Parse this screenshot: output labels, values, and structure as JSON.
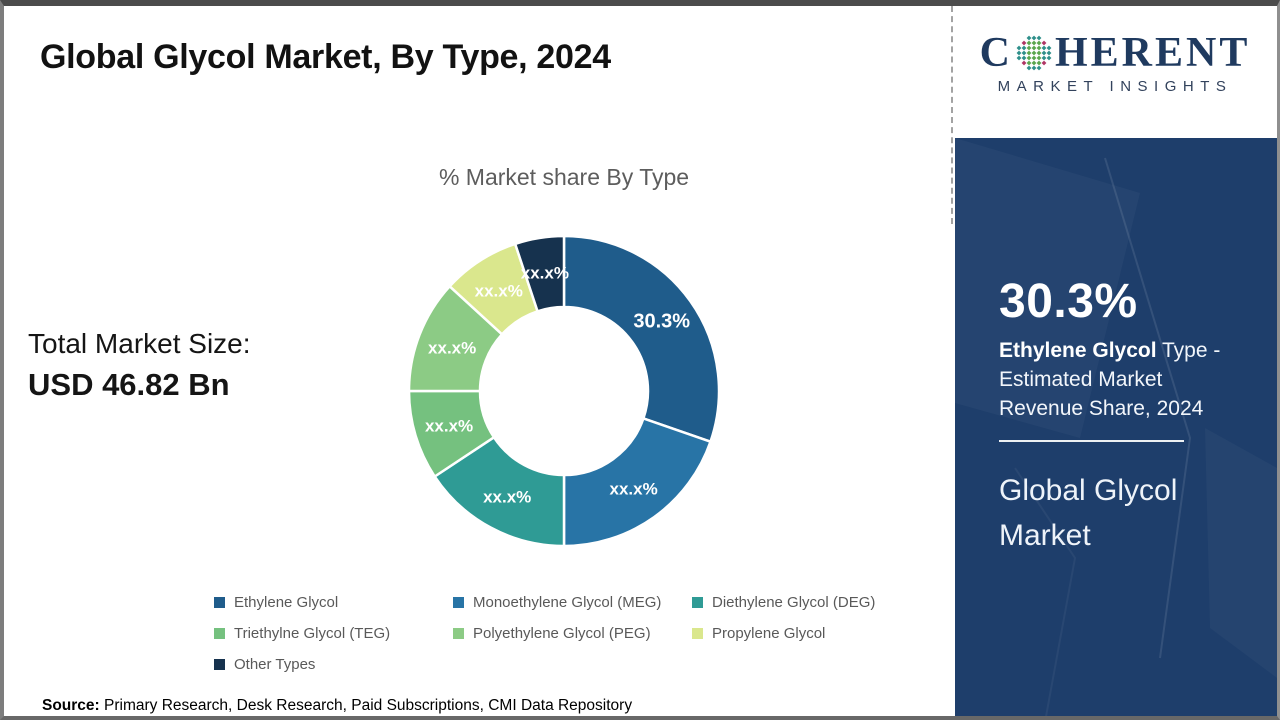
{
  "page": {
    "title": "Global Glycol Market, By Type, 2024"
  },
  "logo": {
    "word_start": "C",
    "word_end": "HERENT",
    "subtitle": "MARKET INSIGHTS"
  },
  "left_panel": {
    "total_label": "Total Market Size:",
    "total_value": "USD 46.82 Bn"
  },
  "chart_data": {
    "type": "pie",
    "style": "donut",
    "title": "% Market share By Type",
    "legend_position": "bottom",
    "start_angle_deg": 0,
    "direction": "clockwise",
    "segments": [
      {
        "label": "Ethylene Glycol",
        "value": 30.3,
        "display": "30.3%",
        "color": "#1F5C8B"
      },
      {
        "label": "Monoethylene Glycol (MEG)",
        "value": 19.7,
        "display": "xx.x%",
        "color": "#2874A6"
      },
      {
        "label": "Diethylene Glycol (DEG)",
        "value": 15.7,
        "display": "xx.x%",
        "color": "#2F9B95"
      },
      {
        "label": "Triethylne Glycol (TEG)",
        "value": 9.3,
        "display": "xx.x%",
        "color": "#75C17F"
      },
      {
        "label": "Polyethylene Glycol (PEG)",
        "value": 11.8,
        "display": "xx.x%",
        "color": "#8CCB85"
      },
      {
        "label": "Propylene Glycol",
        "value": 8.1,
        "display": "xx.x%",
        "color": "#DAE78D"
      },
      {
        "label": "Other Types",
        "value": 5.1,
        "display": "xx.x%",
        "color": "#16324E"
      }
    ]
  },
  "sidebar": {
    "stat_value": "30.3%",
    "stat_bold": "Ethylene Glycol",
    "stat_rest": " Type - Estimated Market Revenue Share, 2024",
    "market_name": "Global Glycol Market"
  },
  "footer": {
    "source_label": "Source:",
    "source_text": " Primary Research, Desk Research, Paid Subscriptions, CMI Data Repository"
  }
}
